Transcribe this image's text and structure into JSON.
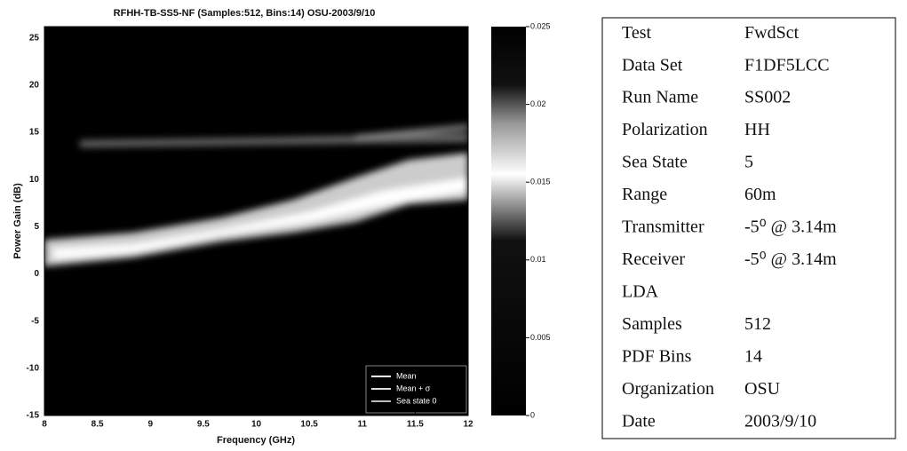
{
  "chart_data": {
    "type": "heatmap",
    "title": "RFHH-TB-SS5-NF (Samples:512, Bins:14) OSU-2003/9/10",
    "xlabel": "Frequency (GHz)",
    "ylabel": "Power Gain (dB)",
    "xlim": [
      8,
      12
    ],
    "xticks": [
      8,
      8.5,
      9,
      9.5,
      10,
      10.5,
      11,
      11.5,
      12
    ],
    "ylim": [
      -15,
      26.2
    ],
    "yticks": [
      -15,
      -10,
      -5,
      0,
      5,
      10,
      15,
      20,
      25
    ],
    "clim": [
      0,
      0.025
    ],
    "cticks": [
      0,
      0.005,
      0.01,
      0.015,
      0.02,
      0.025
    ],
    "series": [
      {
        "name": "Mean",
        "color": "#ffffff"
      },
      {
        "name": "Mean + σ",
        "color": "#dddddd"
      },
      {
        "name": "Sea state 0",
        "color": "#bbbbbb"
      }
    ],
    "legend": "lower right"
  },
  "table": {
    "rows": [
      [
        "Test",
        "FwdSct"
      ],
      [
        "Data Set",
        "F1DF5LCC"
      ],
      [
        "Run Name",
        "SS002"
      ],
      [
        "Polarization",
        "HH"
      ],
      [
        "Sea State",
        "5"
      ],
      [
        "Range",
        "60m"
      ],
      [
        "Transmitter",
        "-5⁰ @ 3.14m"
      ],
      [
        "Receiver",
        "-5⁰ @ 3.14m"
      ],
      [
        "LDA"
      ],
      [
        "Samples",
        "512"
      ],
      [
        "PDF Bins",
        "14"
      ],
      [
        "Organization",
        "OSU"
      ],
      [
        "Date",
        "2003/9/10"
      ]
    ]
  }
}
